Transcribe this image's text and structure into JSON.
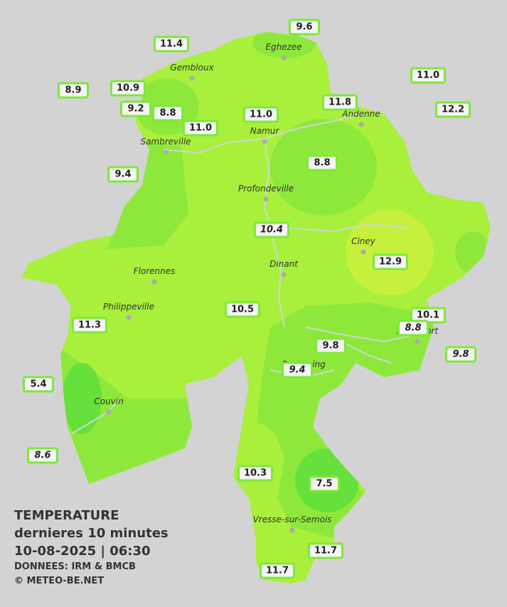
{
  "legend": {
    "title": "TEMPERATURE",
    "subtitle": "dernieres 10 minutes",
    "timestamp": "10-08-2025  |  06:30",
    "source": "DONNEES: IRM & BMCB",
    "credit": "© METEO-BE.NET"
  },
  "cities": [
    "Eghezee",
    "Gembloux",
    "Andenne",
    "Namur",
    "Sambreville",
    "Profondeville",
    "Ciney",
    "Dinant",
    "Florennes",
    "Philippeville",
    "Rochefort",
    "Beauraing",
    "Couvin",
    "Vresse-sur-Semois"
  ],
  "stations": [
    {
      "value": "9.6",
      "italic": false
    },
    {
      "value": "11.4",
      "italic": false
    },
    {
      "value": "11.0",
      "italic": false
    },
    {
      "value": "8.9",
      "italic": false
    },
    {
      "value": "10.9",
      "italic": false
    },
    {
      "value": "11.8",
      "italic": false
    },
    {
      "value": "12.2",
      "italic": false
    },
    {
      "value": "9.2",
      "italic": false
    },
    {
      "value": "8.8",
      "italic": false
    },
    {
      "value": "11.0",
      "italic": false
    },
    {
      "value": "11.0",
      "italic": false
    },
    {
      "value": "8.8",
      "italic": false
    },
    {
      "value": "9.4",
      "italic": false
    },
    {
      "value": "10.4",
      "italic": true
    },
    {
      "value": "12.9",
      "italic": false
    },
    {
      "value": "10.5",
      "italic": false
    },
    {
      "value": "10.1",
      "italic": false
    },
    {
      "value": "8.8",
      "italic": true
    },
    {
      "value": "11.3",
      "italic": false
    },
    {
      "value": "9.8",
      "italic": false
    },
    {
      "value": "9.8",
      "italic": true
    },
    {
      "value": "9.4",
      "italic": true
    },
    {
      "value": "5.4",
      "italic": false
    },
    {
      "value": "8.6",
      "italic": true
    },
    {
      "value": "10.3",
      "italic": false
    },
    {
      "value": "7.5",
      "italic": false
    },
    {
      "value": "11.7",
      "italic": false
    },
    {
      "value": "11.7",
      "italic": false
    }
  ]
}
